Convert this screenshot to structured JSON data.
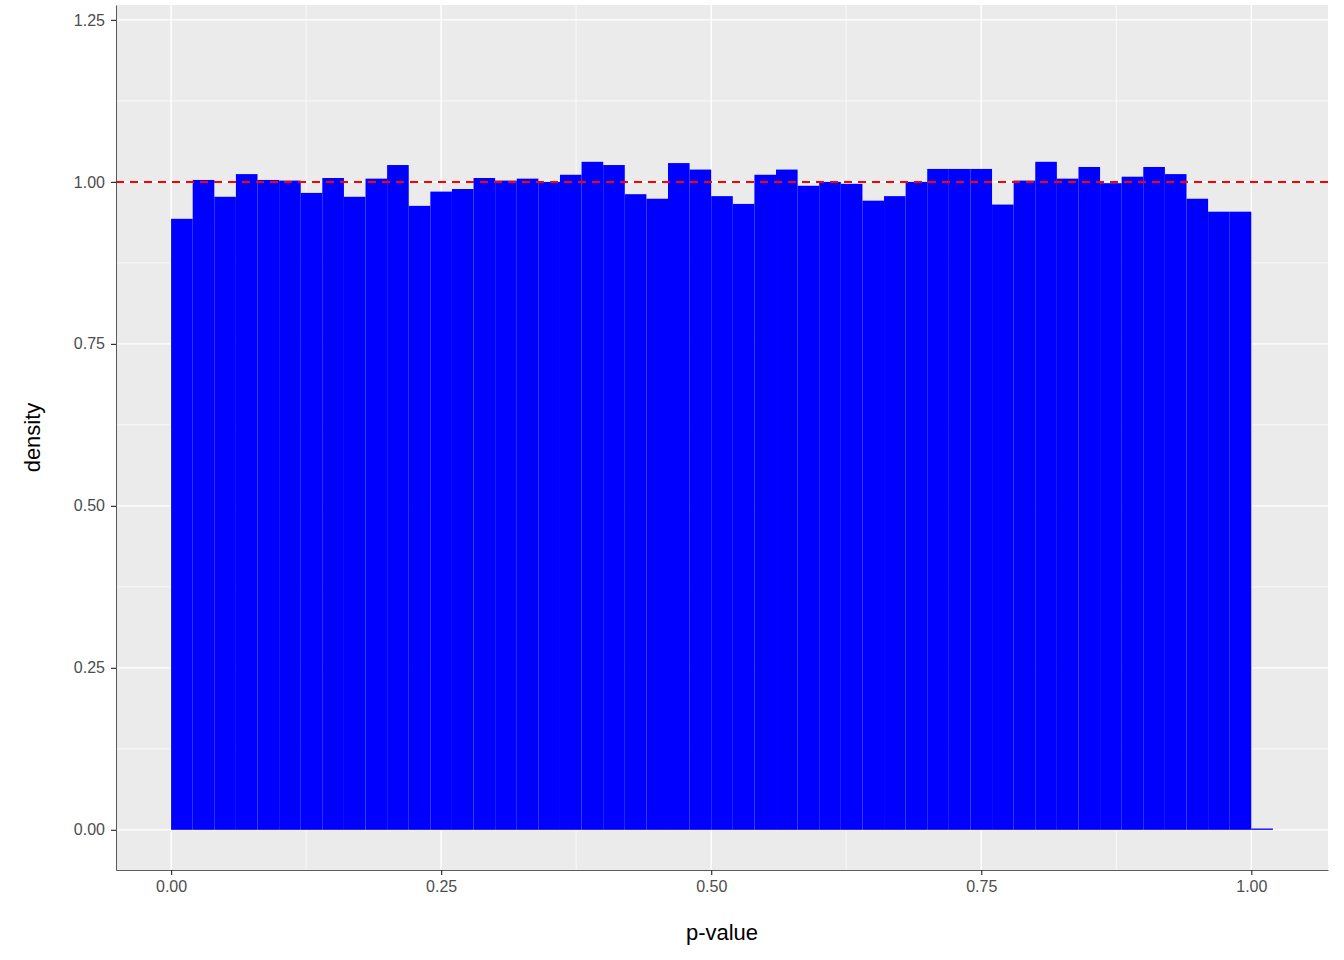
{
  "chart_data": {
    "type": "histogram",
    "x_label": "p-value",
    "y_label": "density",
    "color": "#0000ff",
    "grid": true,
    "bins": [
      0,
      0.02,
      0.04,
      0.06,
      0.08,
      0.1,
      0.12,
      0.14,
      0.16,
      0.18,
      0.2,
      0.22,
      0.24,
      0.26,
      0.28,
      0.3,
      0.32,
      0.34,
      0.36,
      0.38,
      0.4,
      0.42,
      0.44,
      0.46,
      0.48,
      0.5,
      0.52,
      0.54,
      0.56,
      0.58,
      0.6,
      0.62,
      0.64,
      0.66,
      0.68,
      0.7,
      0.72,
      0.74,
      0.76,
      0.78,
      0.8,
      0.82,
      0.84,
      0.86,
      0.88,
      0.9,
      0.92,
      0.94,
      0.96,
      0.98,
      1.0,
      1.02
    ],
    "values": [
      0.943,
      1.003,
      0.977,
      1.012,
      1.003,
      1.002,
      0.983,
      1.006,
      0.977,
      1.005,
      1.026,
      0.963,
      0.985,
      0.989,
      1.006,
      1.002,
      1.005,
      1.0,
      1.011,
      1.031,
      1.026,
      0.981,
      0.974,
      1.029,
      1.019,
      0.978,
      0.966,
      1.011,
      1.019,
      0.994,
      1.0,
      0.997,
      0.971,
      0.978,
      1.0,
      1.02,
      1.02,
      1.02,
      0.965,
      1.002,
      1.031,
      1.005,
      1.023,
      0.998,
      1.008,
      1.023,
      1.012,
      0.974,
      0.954,
      0.954,
      0.002
    ],
    "xlim": [
      -0.051,
      1.071
    ],
    "ylim": [
      -0.062,
      1.273
    ],
    "xticks": [
      {
        "value": 0,
        "label": "0.00"
      },
      {
        "value": 0.25,
        "label": "0.25"
      },
      {
        "value": 0.5,
        "label": "0.50"
      },
      {
        "value": 0.75,
        "label": "0.75"
      },
      {
        "value": 1,
        "label": "1.00"
      }
    ],
    "yticks": [
      {
        "value": 0,
        "label": "0.00"
      },
      {
        "value": 0.25,
        "label": "0.25"
      },
      {
        "value": 0.5,
        "label": "0.50"
      },
      {
        "value": 0.75,
        "label": "0.75"
      },
      {
        "value": 1,
        "label": "1.00"
      },
      {
        "value": 1.25,
        "label": "1.25"
      }
    ],
    "reference_line": {
      "value": 1,
      "color": "#ff0000",
      "line_style": "dashed"
    }
  }
}
